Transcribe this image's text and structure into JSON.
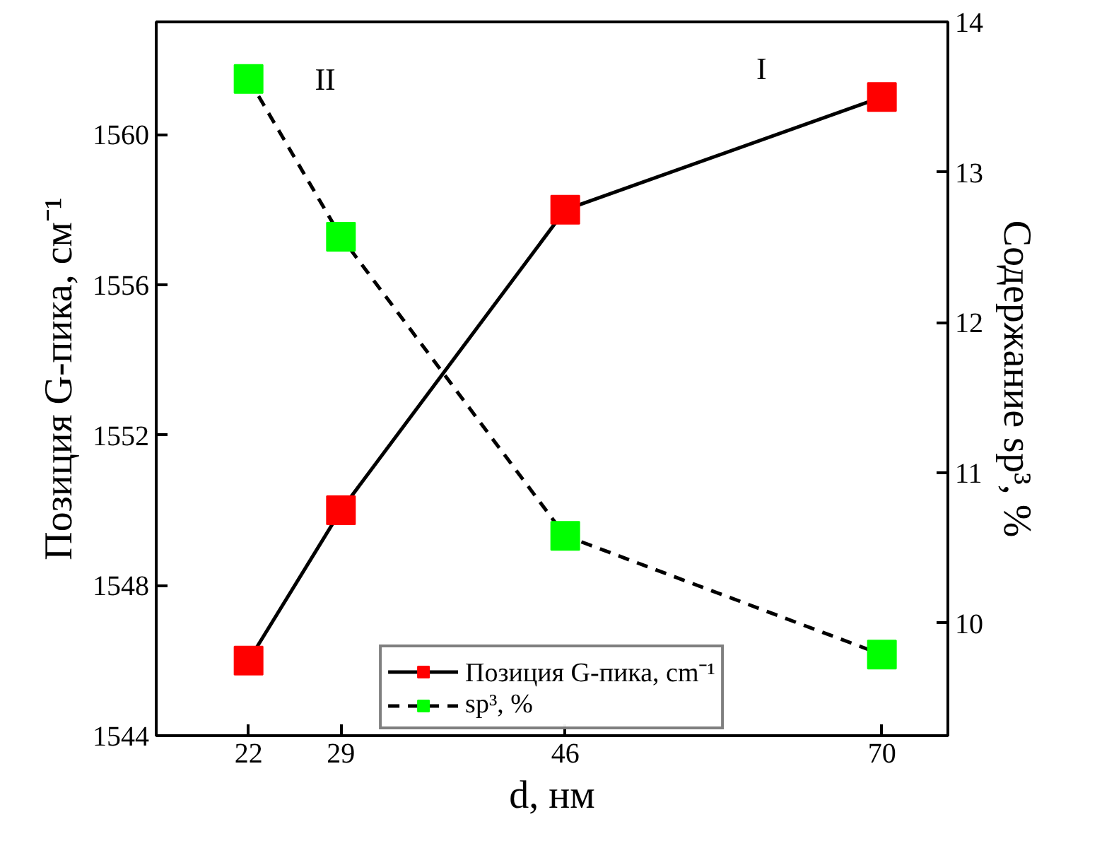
{
  "chart_data": {
    "type": "line",
    "xlabel": "d, нм",
    "ylabel": "Позиция G-пика, см⁻¹",
    "y2label": "Содержание sp³, %",
    "x": [
      22,
      29,
      46,
      70
    ],
    "series": [
      {
        "name": "Позиция G-пика, cm⁻¹",
        "color": "#ff0000",
        "values": [
          1546,
          1550,
          1558,
          1561
        ],
        "line_style": "solid"
      },
      {
        "name": "sp³, %",
        "color": "#00ff00",
        "values": [
          13.62,
          12.57,
          10.58,
          9.79
        ],
        "axis": "y2",
        "line_style": "dashed"
      }
    ],
    "xlim": [
      15,
      75
    ],
    "xticks": [
      22,
      29,
      46,
      70
    ],
    "ylim": [
      1544,
      1563
    ],
    "yticks": [
      1544,
      1548,
      1552,
      1556,
      1560
    ],
    "y2lim": [
      9.25,
      14
    ],
    "y2ticks": [
      10,
      11,
      12,
      13,
      14
    ],
    "marker": "square",
    "grid": false,
    "legend": "bottom",
    "annotations": [
      "II",
      "I"
    ]
  }
}
